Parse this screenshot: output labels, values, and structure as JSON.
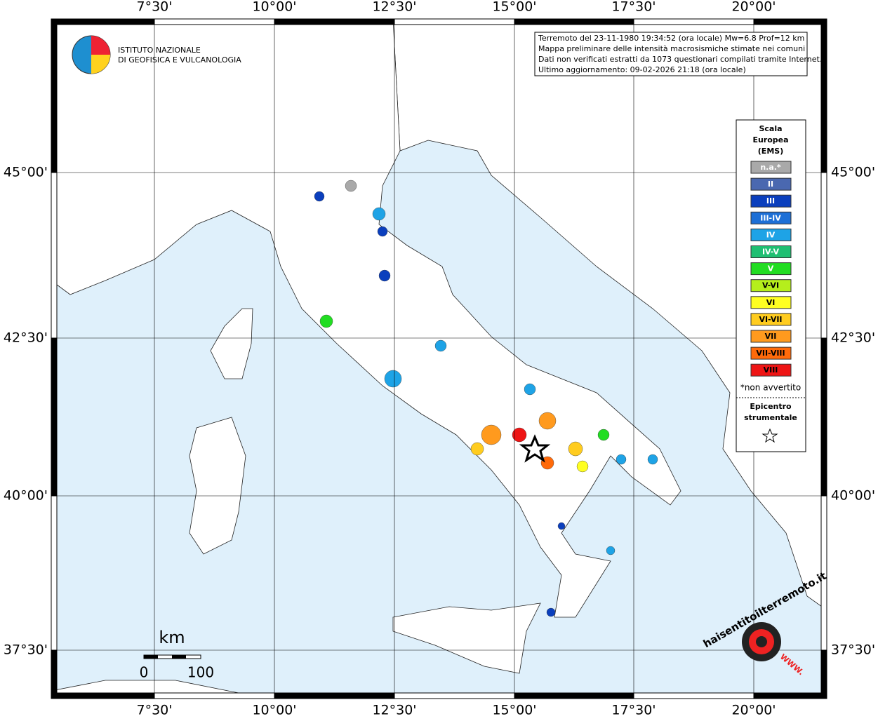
{
  "header": {
    "institute": [
      "ISTITUTO NAZIONALE",
      "DI GEOFISICA E VULCANOLOGIA"
    ]
  },
  "info": [
    "Terremoto del 23-11-1980 19:34:52 (ora locale) Mw=6.8 Prof=12 km",
    "Mappa preliminare delle intensità macrosismiche stimate nei comuni",
    "Dati non verificati estratti da 1073 questionari compilati tramite Internet.",
    "Ultimo aggiornamento: 09-02-2026 21:18 (ora locale)"
  ],
  "longitudes": [
    "7°30'",
    "10°00'",
    "12°30'",
    "15°00'",
    "17°30'",
    "20°00'"
  ],
  "latitudes": [
    "45°00'",
    "42°30'",
    "40°00'",
    "37°30'"
  ],
  "legend": {
    "title": [
      "Scala",
      "Europea",
      "(EMS)"
    ],
    "items": [
      {
        "label": "n.a.*",
        "color": "#a9a9a9"
      },
      {
        "label": "II",
        "color": "#4a68b0"
      },
      {
        "label": "III",
        "color": "#0b3fbd"
      },
      {
        "label": "III-IV",
        "color": "#1d6fd6"
      },
      {
        "label": "IV",
        "color": "#1ea3e6"
      },
      {
        "label": "IV-V",
        "color": "#1fbf72"
      },
      {
        "label": "V",
        "color": "#22dd22"
      },
      {
        "label": "V-VI",
        "color": "#b5ee1c"
      },
      {
        "label": "VI",
        "color": "#ffff22"
      },
      {
        "label": "VI-VII",
        "color": "#ffcc1f"
      },
      {
        "label": "VII",
        "color": "#ff9a1e"
      },
      {
        "label": "VII-VIII",
        "color": "#ff6a0a"
      },
      {
        "label": "VIII",
        "color": "#ee1515"
      }
    ],
    "note": "*non avvertito",
    "epicenter": [
      "Epicentro",
      "strumentale"
    ]
  },
  "scale": {
    "unit": "km",
    "labels": [
      "0",
      "100"
    ]
  },
  "footer_logo": {
    "site": "haisentitoilterremoto.it",
    "www": "WWW."
  }
}
